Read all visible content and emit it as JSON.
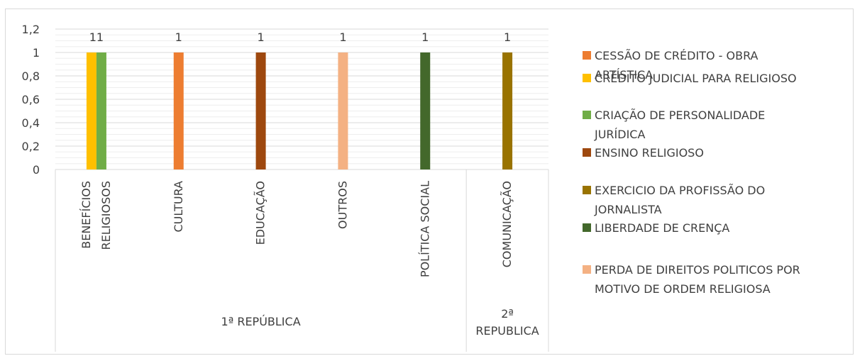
{
  "chart_data": {
    "type": "bar",
    "categories": [
      "BENEFÍCIOS RELIGIOSOS",
      "CULTURA",
      "EDUCAÇÃO",
      "OUTROS",
      "POLÍTICA SOCIAL",
      "COMUNICAÇÃO"
    ],
    "category_lines": [
      [
        "BENEFÍCIOS",
        "RELIGIOSOS"
      ],
      [
        "CULTURA"
      ],
      [
        "EDUCAÇÃO"
      ],
      [
        "OUTROS"
      ],
      [
        "POLÍTICA SOCIAL"
      ],
      [
        "COMUNICAÇÃO"
      ]
    ],
    "groups": [
      {
        "label": "1ª  REPÚBLICA",
        "lines": [
          "1ª  REPÚBLICA"
        ],
        "from": 0,
        "to": 4
      },
      {
        "label": "2ª REPUBLICA",
        "lines": [
          "2ª",
          "REPUBLICA"
        ],
        "from": 5,
        "to": 5
      }
    ],
    "series": [
      {
        "name": "CESSÃO DE CRÉDITO - OBRA ARTÍSTICA",
        "legend_lines": [
          "CESSÃO DE CRÉDITO - OBRA",
          "ARTÍSTICA"
        ],
        "color": "#ED7D31",
        "values": [
          null,
          1,
          null,
          null,
          null,
          null
        ]
      },
      {
        "name": "CRÉDITO JUDICIAL PARA RELIGIOSO",
        "legend_lines": [
          "CRÉDITO JUDICIAL PARA RELIGIOSO"
        ],
        "color": "#FFC000",
        "values": [
          1,
          null,
          null,
          null,
          null,
          null
        ]
      },
      {
        "name": "CRIAÇÃO DE PERSONALIDADE JURÍDICA",
        "legend_lines": [
          "CRIAÇÃO DE PERSONALIDADE",
          "JURÍDICA"
        ],
        "color": "#70AD47",
        "values": [
          1,
          null,
          null,
          null,
          null,
          null
        ]
      },
      {
        "name": "ENSINO RELIGIOSO",
        "legend_lines": [
          "ENSINO RELIGIOSO"
        ],
        "color": "#9E480E",
        "values": [
          null,
          null,
          1,
          null,
          null,
          null
        ]
      },
      {
        "name": "EXERCICIO DA PROFISSÃO  DO JORNALISTA",
        "legend_lines": [
          "EXERCICIO DA PROFISSÃO  DO",
          "JORNALISTA"
        ],
        "color": "#997300",
        "values": [
          null,
          null,
          null,
          null,
          null,
          1
        ]
      },
      {
        "name": "LIBERDADE DE CRENÇA",
        "legend_lines": [
          "LIBERDADE DE CRENÇA"
        ],
        "color": "#43682B",
        "values": [
          null,
          null,
          null,
          null,
          1,
          null
        ]
      },
      {
        "name": "PERDA DE DIREITOS POLITICOS POR MOTIVO DE ORDEM RELIGIOSA",
        "legend_lines": [
          "PERDA DE DIREITOS POLITICOS POR",
          "MOTIVO DE ORDEM RELIGIOSA"
        ],
        "color": "#F4B183",
        "values": [
          null,
          null,
          null,
          1,
          null,
          null
        ]
      }
    ],
    "data_labels": [
      "11",
      "1",
      "1",
      "1",
      "1",
      "1"
    ],
    "yticks": [
      "0",
      "0,2",
      "0,4",
      "0,6",
      "0,8",
      "1",
      "1,2"
    ],
    "ylim": [
      0,
      1.2
    ],
    "grid": true,
    "legend_position": "right"
  }
}
